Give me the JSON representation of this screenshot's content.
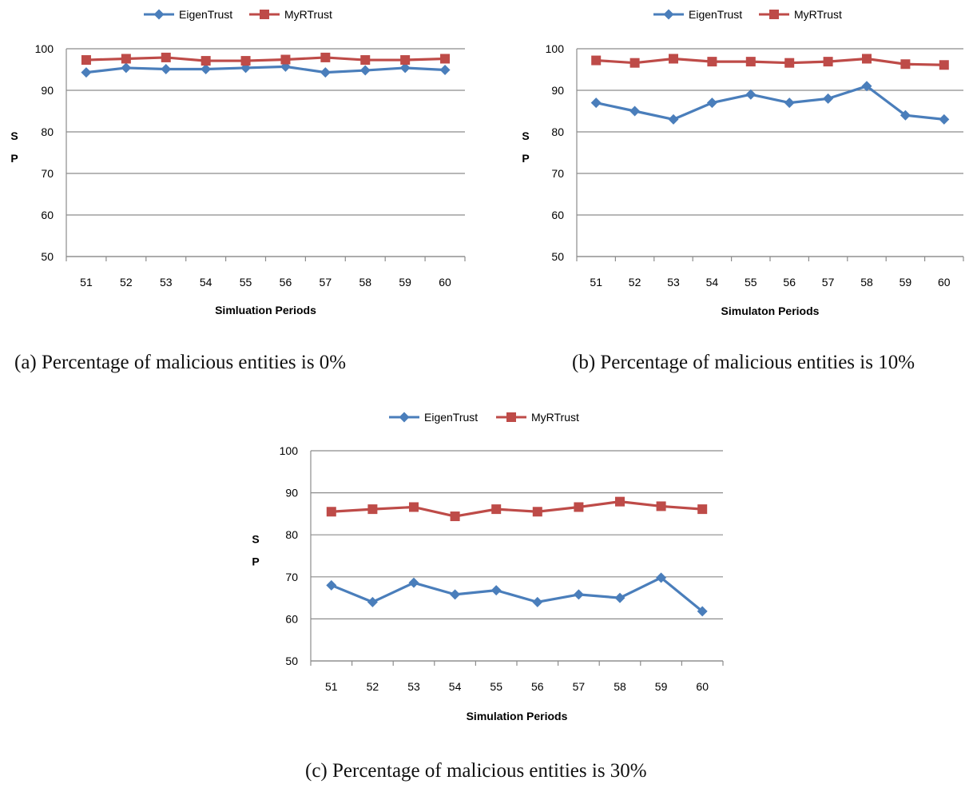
{
  "colors": {
    "eigen": "#4a7ebb",
    "myr": "#be4b48",
    "grid": "#8c8c8c",
    "axis": "#8c8c8c",
    "text": "#000000"
  },
  "chart_data": [
    {
      "type": "line",
      "title": "",
      "caption": "(a) Percentage of malicious entities is 0%",
      "xlabel": "Simluation Periods",
      "ylabel": "S P",
      "ylabel_lines": [
        "S",
        "P"
      ],
      "ylim": [
        50,
        100
      ],
      "yticks": [
        50,
        60,
        70,
        80,
        90,
        100
      ],
      "categories": [
        "51",
        "52",
        "53",
        "54",
        "55",
        "56",
        "57",
        "58",
        "59",
        "60"
      ],
      "series": [
        {
          "name": "EigenTrust",
          "marker": "diamond",
          "values": [
            94.3,
            95.4,
            95.1,
            95.1,
            95.4,
            95.7,
            94.3,
            94.8,
            95.4,
            94.9
          ]
        },
        {
          "name": "MyRTrust",
          "marker": "square",
          "values": [
            97.3,
            97.6,
            97.9,
            97.1,
            97.1,
            97.4,
            97.9,
            97.3,
            97.3,
            97.6
          ]
        }
      ],
      "legend": "top"
    },
    {
      "type": "line",
      "title": "",
      "caption": "(b) Percentage of malicious entities is 10%",
      "xlabel": "Simulaton Periods",
      "ylabel": "S P",
      "ylabel_lines": [
        "S",
        "P"
      ],
      "ylim": [
        50,
        100
      ],
      "yticks": [
        50,
        60,
        70,
        80,
        90,
        100
      ],
      "categories": [
        "51",
        "52",
        "53",
        "54",
        "55",
        "56",
        "57",
        "58",
        "59",
        "60"
      ],
      "series": [
        {
          "name": "EigenTrust",
          "marker": "diamond",
          "values": [
            87,
            85,
            83,
            87,
            89,
            87,
            88,
            91,
            84,
            83
          ]
        },
        {
          "name": "MyRTrust",
          "marker": "square",
          "values": [
            97.2,
            96.6,
            97.6,
            96.9,
            96.9,
            96.6,
            96.9,
            97.6,
            96.3,
            96.1
          ]
        }
      ],
      "legend": "top"
    },
    {
      "type": "line",
      "title": "",
      "caption": "(c) Percentage of malicious entities is 30%",
      "xlabel": "Simulation Periods",
      "ylabel": "S P",
      "ylabel_lines": [
        "S",
        "P"
      ],
      "ylim": [
        50,
        100
      ],
      "yticks": [
        50,
        60,
        70,
        80,
        90,
        100
      ],
      "categories": [
        "51",
        "52",
        "53",
        "54",
        "55",
        "56",
        "57",
        "58",
        "59",
        "60"
      ],
      "series": [
        {
          "name": "EigenTrust",
          "marker": "diamond",
          "values": [
            68,
            64,
            68.6,
            65.8,
            66.8,
            64,
            65.8,
            65,
            69.8,
            61.8
          ]
        },
        {
          "name": "MyRTrust",
          "marker": "square",
          "values": [
            85.5,
            86.1,
            86.6,
            84.4,
            86.1,
            85.5,
            86.6,
            87.9,
            86.8,
            86.1
          ]
        }
      ],
      "legend": "top"
    }
  ]
}
